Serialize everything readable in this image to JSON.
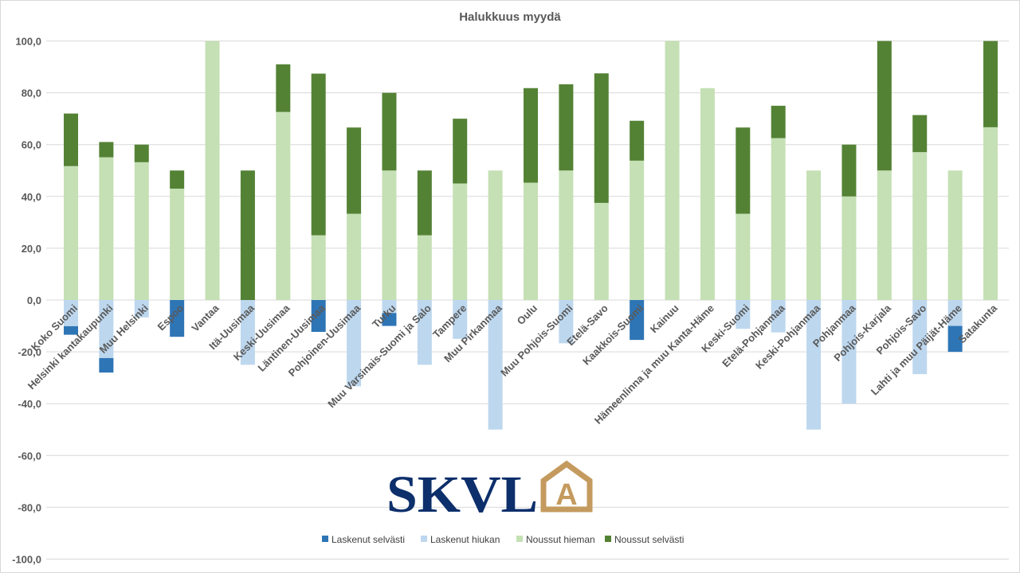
{
  "chart_data": {
    "type": "bar",
    "stacked": true,
    "title": "Halukkuus myydä",
    "xlabel": "",
    "ylabel": "",
    "ylim": [
      -100,
      100
    ],
    "yticks": [
      100,
      80,
      60,
      40,
      20,
      0,
      -20,
      -40,
      -60,
      -80,
      -100
    ],
    "ytick_labels": [
      "100,0",
      "80,0",
      "60,0",
      "40,0",
      "20,0",
      "0,0",
      "-20,0",
      "-40,0",
      "-60,0",
      "-80,0",
      "-100,0"
    ],
    "grid": true,
    "legend_position": "bottom",
    "categories": [
      "Koko Suomi",
      "Helsinki kantakaupunki",
      "Muu Helsinki",
      "Espoo",
      "Vantaa",
      "Itä-Uusimaa",
      "Keski-Uusimaa",
      "Läntinen-Uusimaa",
      "Pohjoinen-Uusimaa",
      "Turku",
      "Muu Varsinais-Suomi ja Salo",
      "Tampere",
      "Muu Pirkanmaa",
      "Oulu",
      "Muu Pohjois-Suomi",
      "Etelä-Savo",
      "Kaakkois-Suomi",
      "Kainuu",
      "Hämeenlinna ja muu Kanta-Häme",
      "Keski-Suomi",
      "Etelä-Pohjanmaa",
      "Keski-Pohjanmaa",
      "Pohjanmaa",
      "Pohjois-Karjala",
      "Pohjois-Savo",
      "Lahti ja muu Päijät-Häme",
      "Satakunta"
    ],
    "series": [
      {
        "name": "Laskenut selvästi",
        "color": "#2e75b6",
        "values": [
          -3.3,
          -5.6,
          0,
          -14.2,
          0,
          0,
          0,
          -12.3,
          0,
          -5,
          0,
          0,
          0,
          0,
          0,
          0,
          -15.4,
          0,
          0,
          0,
          0,
          0,
          0,
          0,
          0,
          -10,
          0
        ]
      },
      {
        "name": "Laskenut hiukan",
        "color": "#bdd7ee",
        "values": [
          -10.1,
          -22.4,
          -6.7,
          0,
          0,
          -25,
          0,
          0,
          -33.3,
          -5,
          -25,
          -15,
          -50,
          0,
          -16.7,
          0,
          0,
          0,
          0,
          -11.1,
          -12.5,
          -50,
          -40,
          0,
          -28.6,
          -10,
          0
        ]
      },
      {
        "name": "Noussut hieman",
        "color": "#c5e0b4",
        "values": [
          51.7,
          55.1,
          53.2,
          43,
          100,
          0,
          72.6,
          25,
          33.3,
          50,
          25,
          45,
          50,
          45.3,
          50,
          37.5,
          53.8,
          100,
          81.8,
          33.3,
          62.5,
          50,
          40,
          50,
          57.1,
          50,
          66.7
        ]
      },
      {
        "name": "Noussut selvästi",
        "color": "#548235",
        "values": [
          20.3,
          5.9,
          6.8,
          7,
          0,
          50,
          18.4,
          62.4,
          33.3,
          30,
          25,
          25,
          0,
          36.5,
          33.3,
          50,
          15.4,
          0,
          0,
          33.3,
          12.5,
          0,
          20,
          50,
          14.3,
          0,
          33.3
        ]
      }
    ]
  },
  "logo": {
    "text": "SKVL",
    "badge_letter": "A"
  }
}
